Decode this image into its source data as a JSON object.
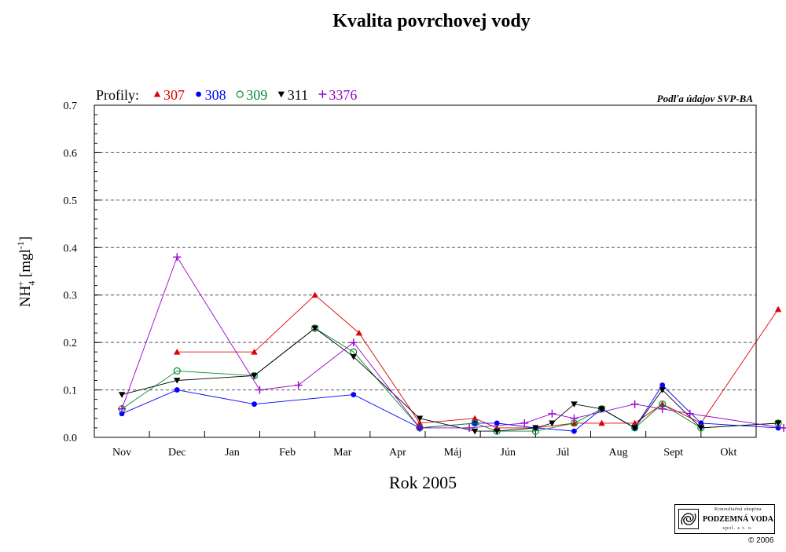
{
  "page": {
    "title": "Kvalita povrchovej vody",
    "source_note": "Podľa údajov SVP-BA",
    "legend_prefix": "Profily:"
  },
  "chart_data": {
    "type": "line",
    "title": "Kvalita povrchovej vody",
    "xlabel": "Rok 2005",
    "ylabel": "NH4+ [mgl-1]",
    "ylabel_parts": {
      "base": "NH",
      "sub": "4",
      "sup": "+",
      "unit_open": " [mgl",
      "unit_sup": "-1",
      "unit_close": "]"
    },
    "categories": [
      "Nov",
      "Dec",
      "Jan",
      "Feb",
      "Mar",
      "Apr",
      "Máj",
      "Jún",
      "Júl",
      "Aug",
      "Sept",
      "Okt"
    ],
    "ylim": [
      0,
      0.7
    ],
    "yticks": [
      "0.0",
      "0.1",
      "0.2",
      "0.3",
      "0.4",
      "0.5",
      "0.6",
      "0.7"
    ],
    "grid": "horizontal dashed",
    "legend_position": "top-left",
    "series": [
      {
        "name": "307",
        "color": "#e00000",
        "marker": "triangle-up",
        "points": [
          [
            1.0,
            0.18
          ],
          [
            2.4,
            0.18
          ],
          [
            3.5,
            0.3
          ],
          [
            4.3,
            0.22
          ],
          [
            5.4,
            0.03
          ],
          [
            6.4,
            0.04
          ],
          [
            6.8,
            0.02
          ],
          [
            7.5,
            0.02
          ],
          [
            8.2,
            0.03
          ],
          [
            8.7,
            0.03
          ],
          [
            9.3,
            0.03
          ],
          [
            9.8,
            0.07
          ],
          [
            10.5,
            0.03
          ],
          [
            11.9,
            0.27
          ]
        ]
      },
      {
        "name": "308",
        "color": "#0000ff",
        "marker": "circle-filled",
        "points": [
          [
            0.0,
            0.05
          ],
          [
            1.0,
            0.1
          ],
          [
            2.4,
            0.07
          ],
          [
            4.2,
            0.09
          ],
          [
            5.4,
            0.02
          ],
          [
            6.4,
            0.03
          ],
          [
            6.8,
            0.03
          ],
          [
            7.5,
            0.02
          ],
          [
            8.2,
            0.013
          ],
          [
            8.7,
            0.06
          ],
          [
            9.3,
            0.02
          ],
          [
            9.8,
            0.11
          ],
          [
            10.5,
            0.03
          ],
          [
            11.9,
            0.02
          ]
        ]
      },
      {
        "name": "309",
        "color": "#008f2e",
        "marker": "circle-open",
        "points": [
          [
            0.0,
            0.06
          ],
          [
            1.0,
            0.14
          ],
          [
            2.4,
            0.13
          ],
          [
            3.5,
            0.23
          ],
          [
            4.2,
            0.18
          ],
          [
            5.4,
            0.02
          ],
          [
            6.4,
            0.03
          ],
          [
            6.8,
            0.013
          ],
          [
            7.5,
            0.013
          ],
          [
            8.2,
            0.03
          ],
          [
            8.7,
            0.06
          ],
          [
            9.3,
            0.02
          ],
          [
            9.8,
            0.07
          ],
          [
            10.5,
            0.02
          ],
          [
            11.9,
            0.03
          ]
        ]
      },
      {
        "name": "311",
        "color": "#000000",
        "marker": "triangle-down",
        "points": [
          [
            0.0,
            0.09
          ],
          [
            1.0,
            0.12
          ],
          [
            2.4,
            0.13
          ],
          [
            3.5,
            0.23
          ],
          [
            4.2,
            0.17
          ],
          [
            5.4,
            0.04
          ],
          [
            6.4,
            0.013
          ],
          [
            6.8,
            0.013
          ],
          [
            7.5,
            0.02
          ],
          [
            7.8,
            0.03
          ],
          [
            8.2,
            0.07
          ],
          [
            8.7,
            0.06
          ],
          [
            9.3,
            0.02
          ],
          [
            9.8,
            0.1
          ],
          [
            10.5,
            0.02
          ],
          [
            11.9,
            0.03
          ]
        ]
      },
      {
        "name": "3376",
        "color": "#9900cc",
        "marker": "plus",
        "points": [
          [
            0.0,
            0.06
          ],
          [
            1.0,
            0.38
          ],
          [
            2.5,
            0.1
          ],
          [
            3.2,
            0.11
          ],
          [
            4.2,
            0.2
          ],
          [
            5.4,
            0.02
          ],
          [
            6.3,
            0.02
          ],
          [
            7.3,
            0.03
          ],
          [
            7.8,
            0.05
          ],
          [
            8.2,
            0.04
          ],
          [
            9.3,
            0.07
          ],
          [
            9.8,
            0.06
          ],
          [
            10.3,
            0.05
          ],
          [
            12.0,
            0.02
          ]
        ]
      }
    ]
  },
  "logo": {
    "top_text": "Konzultačná skupina",
    "name": "PODZEMNÁ VODA",
    "bottom_text": "spol. s r. o.",
    "copyright": "© 2006"
  }
}
